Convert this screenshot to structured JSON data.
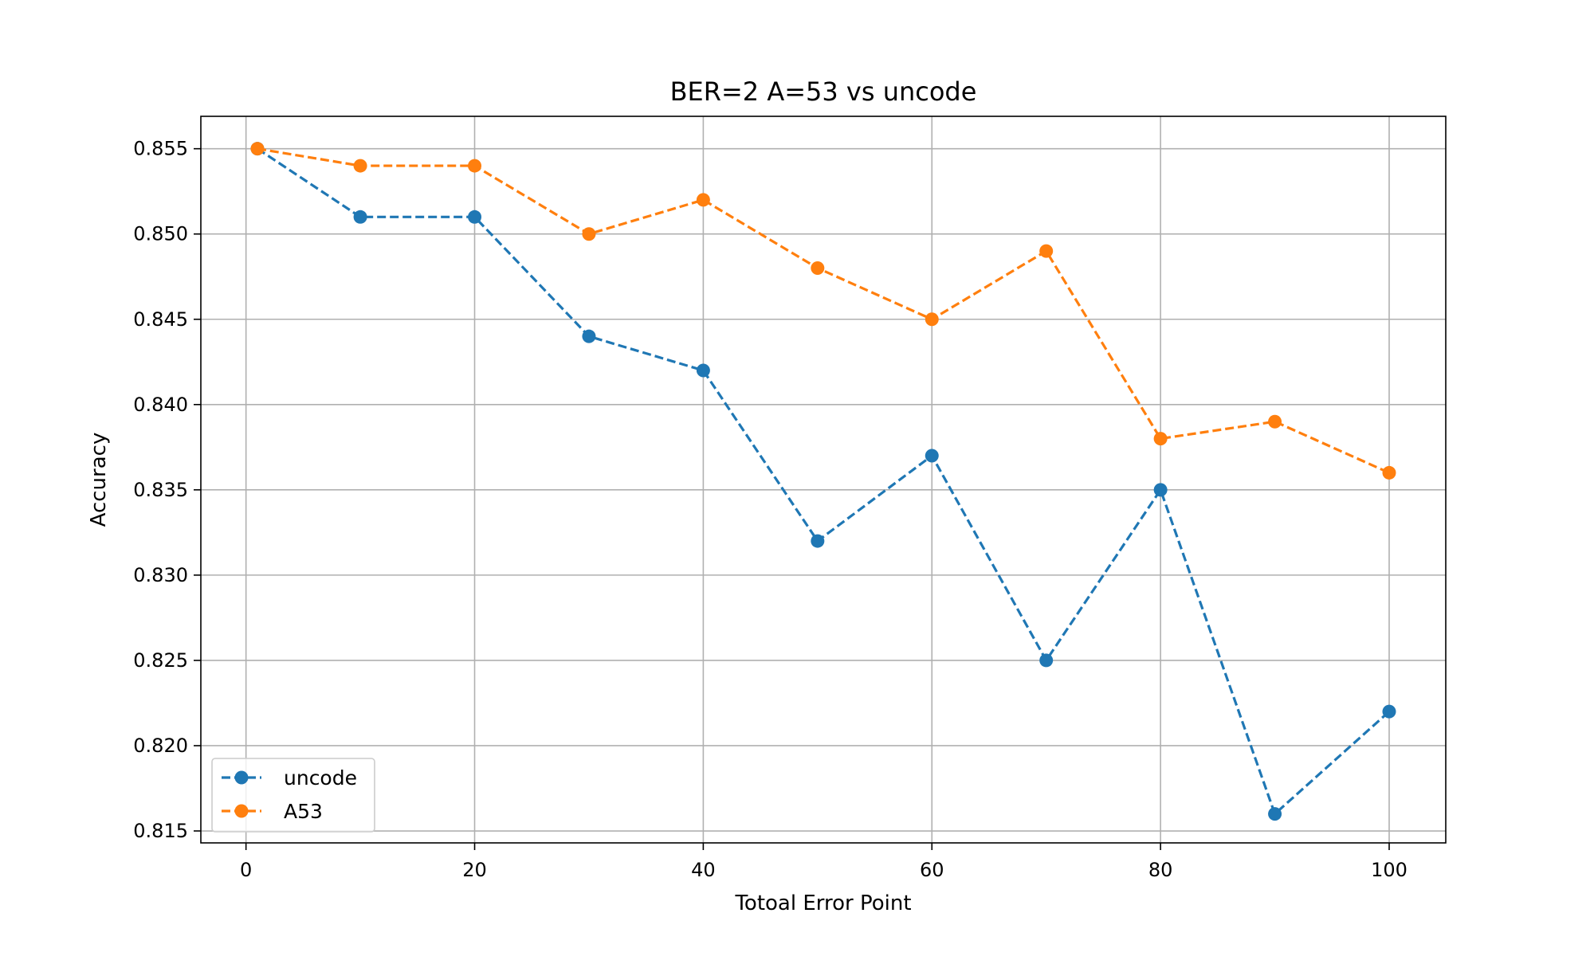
{
  "chart_data": {
    "type": "line",
    "title": "BER=2 A=53 vs uncode",
    "xlabel": "Totoal Error Point",
    "ylabel": "Accuracy",
    "xlim": [
      -3.95,
      104.95
    ],
    "ylim": [
      0.8143,
      0.8569
    ],
    "xticks": [
      0,
      20,
      40,
      60,
      80,
      100
    ],
    "xtick_labels": [
      "0",
      "20",
      "40",
      "60",
      "80",
      "100"
    ],
    "yticks": [
      0.815,
      0.82,
      0.825,
      0.83,
      0.835,
      0.84,
      0.845,
      0.85,
      0.855
    ],
    "ytick_labels": [
      "0.815",
      "0.820",
      "0.825",
      "0.830",
      "0.835",
      "0.840",
      "0.845",
      "0.850",
      "0.855"
    ],
    "grid": true,
    "legend_position": "lower-left",
    "x": [
      1,
      10,
      20,
      30,
      40,
      50,
      60,
      70,
      80,
      90,
      100
    ],
    "series": [
      {
        "name": "uncode",
        "color": "#1f77b4",
        "marker": "circle",
        "line_style": "dashed",
        "values": [
          0.855,
          0.851,
          0.851,
          0.844,
          0.842,
          0.832,
          0.837,
          0.825,
          0.835,
          0.816,
          0.822
        ]
      },
      {
        "name": "A53",
        "color": "#ff7f0e",
        "marker": "circle",
        "line_style": "dashed",
        "values": [
          0.855,
          0.854,
          0.854,
          0.85,
          0.852,
          0.848,
          0.845,
          0.849,
          0.838,
          0.839,
          0.836
        ]
      }
    ]
  }
}
